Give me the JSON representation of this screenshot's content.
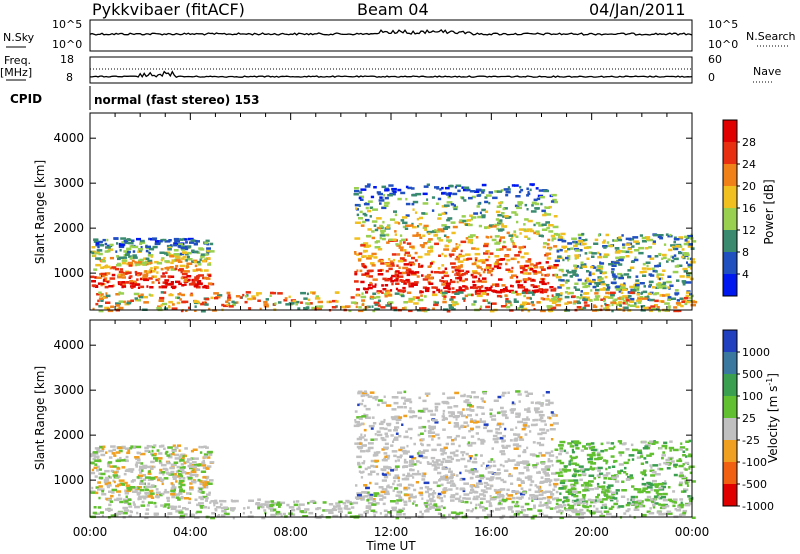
{
  "header": {
    "radar_name": "Pykkvibaer (fitACF)",
    "beam": "Beam 04",
    "date": "04/Jan/2011"
  },
  "nsky": {
    "label": "N.Sky",
    "left_ticks": [
      "10^5",
      "10^0"
    ],
    "right_ticks": [
      "10^5",
      "10^0"
    ],
    "right_label": "N.Search"
  },
  "freq": {
    "label_line1": "Freq.",
    "label_line2": "[MHz]",
    "left_ticks": [
      "18",
      "8"
    ],
    "right_ticks": [
      "60",
      "0"
    ],
    "right_label": "Nave"
  },
  "cpid": {
    "label": "CPID",
    "text": "normal (fast stereo) 153"
  },
  "chart_data": [
    {
      "type": "heatmap",
      "quantity": "Power",
      "xlabel": "",
      "ylabel": "Slant Range [km]",
      "xlim_hours": [
        0,
        24
      ],
      "ylim": [
        180,
        4560
      ],
      "yticks": [
        1000,
        2000,
        3000,
        4000
      ],
      "colorbar": {
        "label": "Power [dB]",
        "ticks": [
          "4",
          "8",
          "12",
          "16",
          "20",
          "24",
          "28"
        ],
        "colors": [
          "#0018f0",
          "#2050c0",
          "#3a8a70",
          "#9ad050",
          "#f0c020",
          "#f08018",
          "#e83010",
          "#e00000"
        ]
      },
      "scatter_regions": [
        {
          "t": [
            0.0,
            4.8
          ],
          "range": [
            700,
            1800
          ],
          "level": "medium-high"
        },
        {
          "t": [
            10.5,
            18.5
          ],
          "range": [
            600,
            3000
          ],
          "level": "high"
        },
        {
          "t": [
            18.5,
            24.0
          ],
          "range": [
            400,
            1900
          ],
          "level": "low-medium"
        },
        {
          "t": [
            0.0,
            24.0
          ],
          "range": [
            180,
            600
          ],
          "level": "low"
        }
      ]
    },
    {
      "type": "heatmap",
      "quantity": "Velocity",
      "xlabel": "Time UT",
      "ylabel": "Slant Range [km]",
      "xticks": [
        "00:00",
        "04:00",
        "08:00",
        "12:00",
        "16:00",
        "20:00",
        "00:00"
      ],
      "xlim_hours": [
        0,
        24
      ],
      "ylim": [
        180,
        4560
      ],
      "yticks": [
        1000,
        2000,
        3000,
        4000
      ],
      "colorbar": {
        "label": "Velocity [m s^-1]",
        "ticks": [
          "1000",
          "500",
          "100",
          "25",
          "-25",
          "-100",
          "-500",
          "-1000"
        ],
        "colors": [
          "#2040c0",
          "#3a78a0",
          "#3aa050",
          "#60c030",
          "#c0c0c0",
          "#f0a020",
          "#f06010",
          "#e00000"
        ]
      },
      "scatter_regions": [
        {
          "t": [
            0.0,
            4.8
          ],
          "range": [
            600,
            1800
          ],
          "level": "mixed near zero and toward radar"
        },
        {
          "t": [
            10.5,
            18.5
          ],
          "range": [
            600,
            3000
          ],
          "level": "near zero"
        },
        {
          "t": [
            18.5,
            24.0
          ],
          "range": [
            400,
            1900
          ],
          "level": "toward radar"
        },
        {
          "t": [
            0.0,
            24.0
          ],
          "range": [
            180,
            600
          ],
          "level": "near zero"
        }
      ]
    }
  ]
}
